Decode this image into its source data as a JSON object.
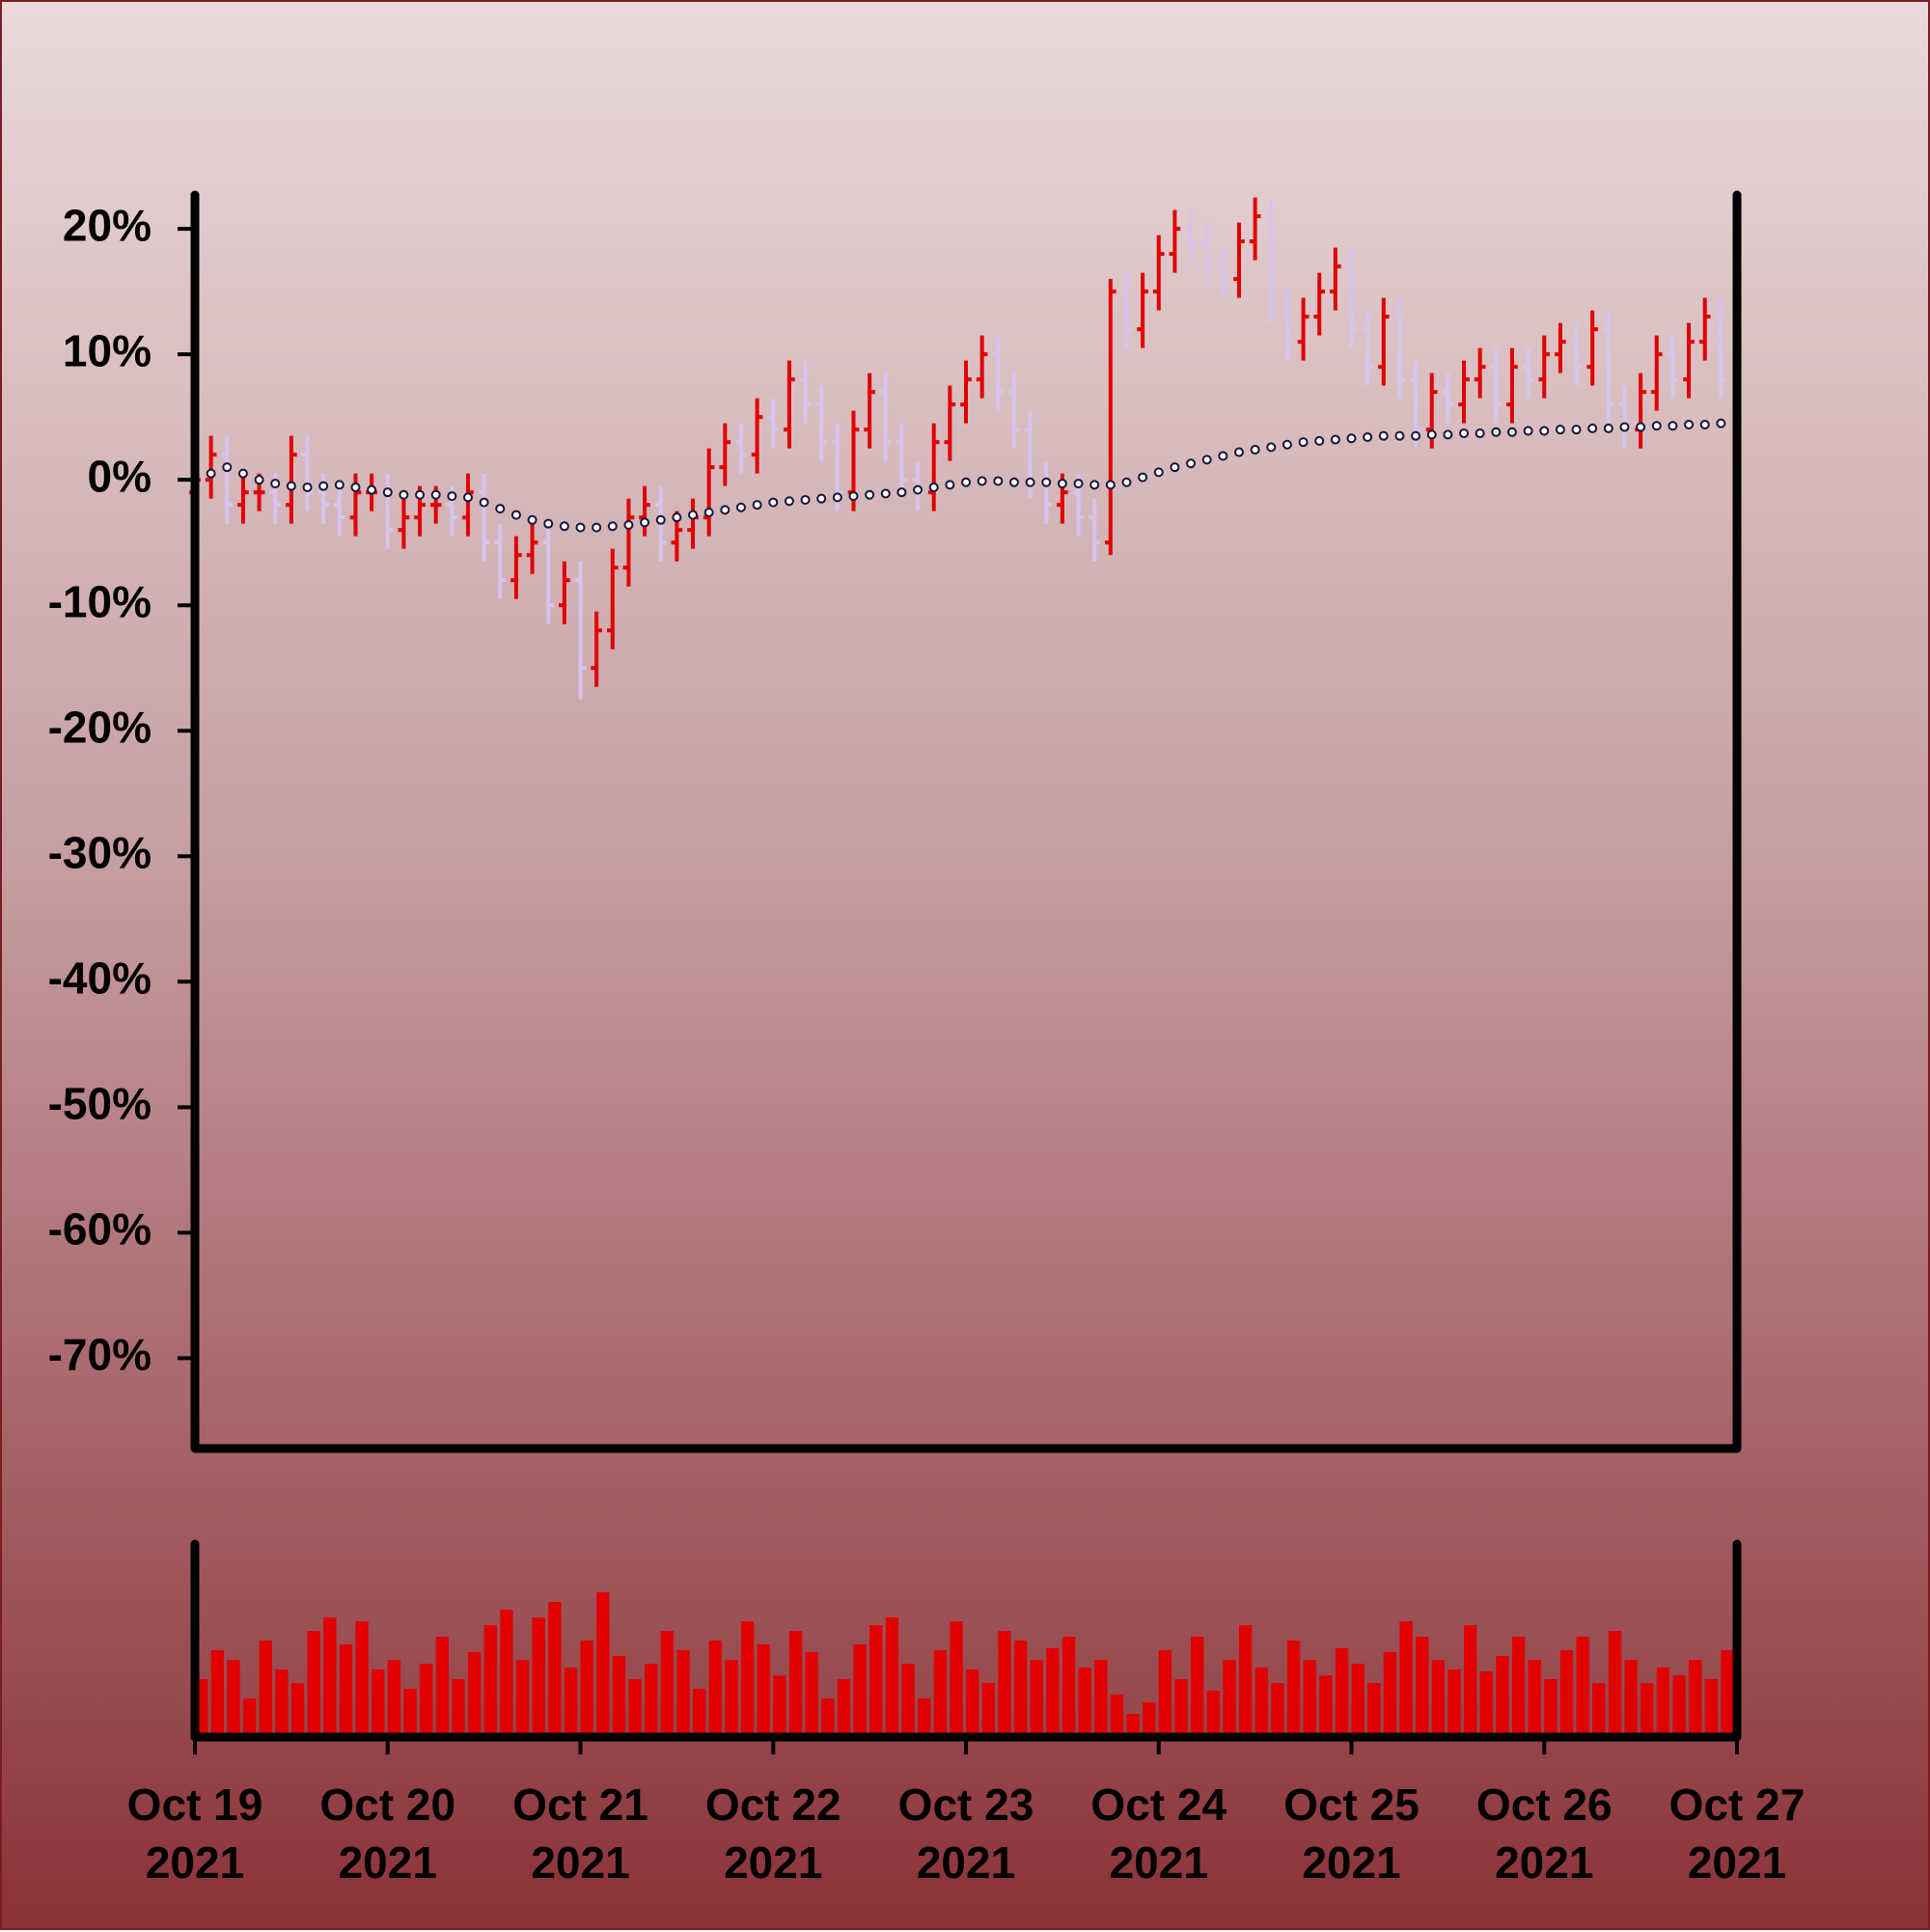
{
  "chart_data": {
    "type": "ohlc",
    "x": [
      "2021-10-19T00:00",
      "2021-10-19T02:00",
      "2021-10-19T04:00",
      "2021-10-19T06:00",
      "2021-10-19T08:00",
      "2021-10-19T10:00",
      "2021-10-19T12:00",
      "2021-10-19T14:00",
      "2021-10-19T16:00",
      "2021-10-19T18:00",
      "2021-10-19T20:00",
      "2021-10-19T22:00",
      "2021-10-20T00:00",
      "2021-10-20T02:00",
      "2021-10-20T04:00",
      "2021-10-20T06:00",
      "2021-10-20T08:00",
      "2021-10-20T10:00",
      "2021-10-20T12:00",
      "2021-10-20T14:00",
      "2021-10-20T16:00",
      "2021-10-20T18:00",
      "2021-10-20T20:00",
      "2021-10-20T22:00",
      "2021-10-21T00:00",
      "2021-10-21T02:00",
      "2021-10-21T04:00",
      "2021-10-21T06:00",
      "2021-10-21T08:00",
      "2021-10-21T10:00",
      "2021-10-21T12:00",
      "2021-10-21T14:00",
      "2021-10-21T16:00",
      "2021-10-21T18:00",
      "2021-10-21T20:00",
      "2021-10-21T22:00",
      "2021-10-22T00:00",
      "2021-10-22T02:00",
      "2021-10-22T04:00",
      "2021-10-22T06:00",
      "2021-10-22T08:00",
      "2021-10-22T10:00",
      "2021-10-22T12:00",
      "2021-10-22T14:00",
      "2021-10-22T16:00",
      "2021-10-22T18:00",
      "2021-10-22T20:00",
      "2021-10-22T22:00",
      "2021-10-23T00:00",
      "2021-10-23T02:00",
      "2021-10-23T04:00",
      "2021-10-23T06:00",
      "2021-10-23T08:00",
      "2021-10-23T10:00",
      "2021-10-23T12:00",
      "2021-10-23T14:00",
      "2021-10-23T16:00",
      "2021-10-23T18:00",
      "2021-10-23T20:00",
      "2021-10-23T22:00",
      "2021-10-24T00:00",
      "2021-10-24T02:00",
      "2021-10-24T04:00",
      "2021-10-24T06:00",
      "2021-10-24T08:00",
      "2021-10-24T10:00",
      "2021-10-24T12:00",
      "2021-10-24T14:00",
      "2021-10-24T16:00",
      "2021-10-24T18:00",
      "2021-10-24T20:00",
      "2021-10-24T22:00",
      "2021-10-25T00:00",
      "2021-10-25T02:00",
      "2021-10-25T04:00",
      "2021-10-25T06:00",
      "2021-10-25T08:00",
      "2021-10-25T10:00",
      "2021-10-25T12:00",
      "2021-10-25T14:00",
      "2021-10-25T16:00",
      "2021-10-25T18:00",
      "2021-10-25T20:00",
      "2021-10-25T22:00",
      "2021-10-26T00:00",
      "2021-10-26T02:00",
      "2021-10-26T04:00",
      "2021-10-26T06:00",
      "2021-10-26T08:00",
      "2021-10-26T10:00",
      "2021-10-26T12:00",
      "2021-10-26T14:00",
      "2021-10-26T16:00",
      "2021-10-26T18:00",
      "2021-10-26T20:00",
      "2021-10-26T22:00"
    ],
    "ohlc": [
      [
        -1,
        1.5,
        -2.5,
        0
      ],
      [
        0,
        3.5,
        -1.5,
        2
      ],
      [
        2,
        3.5,
        -3.5,
        -2
      ],
      [
        -2,
        0.5,
        -3.5,
        -1
      ],
      [
        -1,
        0.5,
        -2.5,
        -1
      ],
      [
        -1,
        0.5,
        -3.5,
        -2
      ],
      [
        -2,
        3.5,
        -3.5,
        2
      ],
      [
        2,
        3.5,
        -2.5,
        -1
      ],
      [
        -1,
        0.5,
        -3.5,
        -2
      ],
      [
        -2,
        -0.5,
        -4.5,
        -3
      ],
      [
        -3,
        0.5,
        -4.5,
        -1
      ],
      [
        -1,
        0.5,
        -2.5,
        -1
      ],
      [
        -1,
        0.5,
        -5.5,
        -4
      ],
      [
        -4,
        -1.5,
        -5.5,
        -3
      ],
      [
        -3,
        -0.5,
        -4.5,
        -2
      ],
      [
        -2,
        -0.5,
        -3.5,
        -2
      ],
      [
        -2,
        -0.5,
        -4.5,
        -3
      ],
      [
        -3,
        0.5,
        -4.5,
        -1
      ],
      [
        -1,
        0.5,
        -6.5,
        -5
      ],
      [
        -5,
        -3.5,
        -9.5,
        -8
      ],
      [
        -8,
        -4.5,
        -9.5,
        -6
      ],
      [
        -6,
        -3.5,
        -7.5,
        -5
      ],
      [
        -5,
        -3.5,
        -11.5,
        -10
      ],
      [
        -10,
        -6.5,
        -11.5,
        -8
      ],
      [
        -8,
        -6.5,
        -17.5,
        -15
      ],
      [
        -15,
        -10.5,
        -16.5,
        -12
      ],
      [
        -12,
        -5.5,
        -13.5,
        -7
      ],
      [
        -7,
        -1.5,
        -8.5,
        -3
      ],
      [
        -3,
        -0.5,
        -4.5,
        -2
      ],
      [
        -2,
        -0.5,
        -6.5,
        -5
      ],
      [
        -5,
        -2.5,
        -6.5,
        -4
      ],
      [
        -4,
        -1.5,
        -5.5,
        -3
      ],
      [
        -3,
        2.5,
        -4.5,
        1
      ],
      [
        1,
        4.5,
        -0.5,
        3
      ],
      [
        3,
        4.5,
        0.5,
        2
      ],
      [
        2,
        6.5,
        0.5,
        5
      ],
      [
        5,
        6.5,
        2.5,
        4
      ],
      [
        4,
        9.5,
        2.5,
        8
      ],
      [
        8,
        9.5,
        4.5,
        6
      ],
      [
        6,
        7.5,
        1.5,
        3
      ],
      [
        3,
        4.5,
        -2.5,
        -1
      ],
      [
        -1,
        5.5,
        -2.5,
        4
      ],
      [
        4,
        8.5,
        2.5,
        7
      ],
      [
        7,
        8.5,
        1.5,
        3
      ],
      [
        3,
        4.5,
        -1.5,
        0
      ],
      [
        0,
        1.5,
        -2.5,
        -1
      ],
      [
        -1,
        4.5,
        -2.5,
        3
      ],
      [
        3,
        7.5,
        1.5,
        6
      ],
      [
        6,
        9.5,
        4.5,
        8
      ],
      [
        8,
        11.5,
        6.5,
        10
      ],
      [
        10,
        11.5,
        5.5,
        7
      ],
      [
        7,
        8.5,
        2.5,
        4
      ],
      [
        4,
        5.5,
        -1.5,
        0
      ],
      [
        0,
        1.5,
        -3.5,
        -2
      ],
      [
        -2,
        0.5,
        -3.5,
        -1
      ],
      [
        -1,
        0.5,
        -4.5,
        -3
      ],
      [
        -3,
        -1.5,
        -6.5,
        -5
      ],
      [
        -5,
        16,
        -6,
        15
      ],
      [
        15,
        16.5,
        10.5,
        12
      ],
      [
        12,
        16.5,
        10.5,
        15
      ],
      [
        15,
        19.5,
        13.5,
        18
      ],
      [
        18,
        21.5,
        16.5,
        20
      ],
      [
        20,
        21.5,
        17.5,
        19
      ],
      [
        19,
        20.5,
        15.5,
        17
      ],
      [
        17,
        18.5,
        14.5,
        16
      ],
      [
        16,
        20.5,
        14.5,
        19
      ],
      [
        19,
        22.5,
        17.5,
        21
      ],
      [
        21,
        22.5,
        12.5,
        14
      ],
      [
        14,
        15.5,
        9.5,
        11
      ],
      [
        11,
        14.5,
        9.5,
        13
      ],
      [
        13,
        16.5,
        11.5,
        15
      ],
      [
        15,
        18.5,
        13.5,
        17
      ],
      [
        17,
        18.5,
        10.5,
        12
      ],
      [
        12,
        13.5,
        7.5,
        9
      ],
      [
        9,
        14.5,
        7.5,
        13
      ],
      [
        13,
        14.5,
        6.5,
        8
      ],
      [
        8,
        9.5,
        2.5,
        4
      ],
      [
        4,
        8.5,
        2.5,
        7
      ],
      [
        7,
        8.5,
        4.5,
        6
      ],
      [
        6,
        9.5,
        4.5,
        8
      ],
      [
        8,
        10.5,
        6.5,
        9
      ],
      [
        9,
        10.5,
        4.5,
        6
      ],
      [
        6,
        10.5,
        4.5,
        9
      ],
      [
        9,
        10.5,
        6.5,
        8
      ],
      [
        8,
        11.5,
        6.5,
        10
      ],
      [
        10,
        12.5,
        8.5,
        11
      ],
      [
        11,
        12.5,
        7.5,
        9
      ],
      [
        9,
        13.5,
        7.5,
        12
      ],
      [
        12,
        13.5,
        4.5,
        6
      ],
      [
        6,
        7.5,
        2.5,
        4
      ],
      [
        4,
        8.5,
        2.5,
        7
      ],
      [
        7,
        11.5,
        5.5,
        10
      ],
      [
        10,
        11.5,
        6.5,
        8
      ],
      [
        8,
        12.5,
        6.5,
        11
      ],
      [
        11,
        14.5,
        9.5,
        13
      ],
      [
        13,
        14.5,
        6.5,
        8
      ]
    ],
    "moving_average": [
      0,
      0.5,
      1,
      0.5,
      0,
      -0.3,
      -0.5,
      -0.6,
      -0.5,
      -0.4,
      -0.6,
      -0.8,
      -1,
      -1.2,
      -1.2,
      -1.2,
      -1.3,
      -1.4,
      -1.8,
      -2.3,
      -2.8,
      -3.2,
      -3.5,
      -3.7,
      -3.8,
      -3.8,
      -3.7,
      -3.6,
      -3.4,
      -3.2,
      -3,
      -2.8,
      -2.6,
      -2.4,
      -2.2,
      -2,
      -1.8,
      -1.7,
      -1.6,
      -1.5,
      -1.4,
      -1.3,
      -1.2,
      -1.1,
      -1,
      -0.8,
      -0.6,
      -0.4,
      -0.2,
      -0.1,
      -0.1,
      -0.2,
      -0.2,
      -0.2,
      -0.3,
      -0.3,
      -0.4,
      -0.4,
      -0.2,
      0.2,
      0.6,
      1,
      1.3,
      1.6,
      1.9,
      2.2,
      2.4,
      2.6,
      2.8,
      3,
      3.1,
      3.2,
      3.3,
      3.4,
      3.5,
      3.5,
      3.5,
      3.6,
      3.6,
      3.7,
      3.7,
      3.8,
      3.8,
      3.9,
      3.9,
      4,
      4,
      4.1,
      4.1,
      4.2,
      4.2,
      4.3,
      4.3,
      4.4,
      4.4,
      4.5
    ],
    "volume": [
      30,
      45,
      40,
      20,
      50,
      35,
      28,
      55,
      62,
      48,
      60,
      35,
      40,
      25,
      38,
      52,
      30,
      44,
      58,
      66,
      40,
      62,
      70,
      36,
      50,
      75,
      42,
      30,
      38,
      55,
      45,
      25,
      50,
      40,
      60,
      48,
      32,
      55,
      44,
      20,
      30,
      48,
      58,
      62,
      38,
      20,
      45,
      60,
      35,
      28,
      55,
      50,
      40,
      46,
      52,
      36,
      40,
      22,
      12,
      18,
      45,
      30,
      52,
      24,
      40,
      58,
      36,
      28,
      50,
      40,
      32,
      46,
      38,
      28,
      44,
      60,
      52,
      40,
      35,
      58,
      34,
      42,
      52,
      40,
      30,
      45,
      52,
      28,
      55,
      40,
      28,
      36,
      32,
      40,
      30,
      45
    ],
    "up_color": "#e00000",
    "down_color": "#d6c4ee",
    "ma_color": "#16163a",
    "volume_color": "#e00000",
    "xlim": [
      "2021-10-19",
      "2021-10-27"
    ],
    "xticks": [
      {
        "value": "2021-10-19",
        "label": "Oct 19\n2021"
      },
      {
        "value": "2021-10-20",
        "label": "Oct 20\n2021"
      },
      {
        "value": "2021-10-21",
        "label": "Oct 21\n2021"
      },
      {
        "value": "2021-10-22",
        "label": "Oct 22\n2021"
      },
      {
        "value": "2021-10-23",
        "label": "Oct 23\n2021"
      },
      {
        "value": "2021-10-24",
        "label": "Oct 24\n2021"
      },
      {
        "value": "2021-10-25",
        "label": "Oct 25\n2021"
      },
      {
        "value": "2021-10-26",
        "label": "Oct 26\n2021"
      },
      {
        "value": "2021-10-27",
        "label": "Oct 27\n2021"
      }
    ],
    "ylim": [
      -77.2,
      22.7
    ],
    "yticks": [
      {
        "value": 20,
        "label": "20%"
      },
      {
        "value": 10,
        "label": "10%"
      },
      {
        "value": 0,
        "label": "0%"
      },
      {
        "value": -10,
        "label": "-10%"
      },
      {
        "value": -20,
        "label": "-20%"
      },
      {
        "value": -30,
        "label": "-30%"
      },
      {
        "value": -40,
        "label": "-40%"
      },
      {
        "value": -50,
        "label": "-50%"
      },
      {
        "value": -60,
        "label": "-60%"
      },
      {
        "value": -70,
        "label": "-70%"
      }
    ],
    "volume_ylim": [
      0,
      100
    ]
  }
}
